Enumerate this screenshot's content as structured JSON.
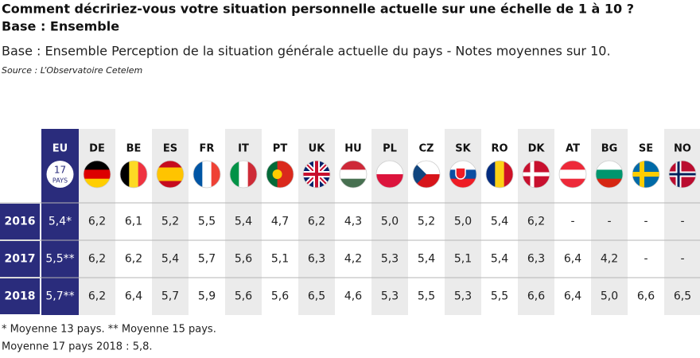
{
  "header": {
    "title_line1": "Comment décririez-vous votre situation personnelle actuelle sur une échelle de 1 à 10 ?",
    "title_line2": "Base : Ensemble",
    "subtitle": "Base : Ensemble Perception de la situation générale actuelle du pays - Notes moyennes sur 10.",
    "source": "Source : L’Observatoire Cetelem"
  },
  "table": {
    "columns": [
      "EU",
      "DE",
      "BE",
      "ES",
      "FR",
      "IT",
      "PT",
      "UK",
      "HU",
      "PL",
      "CZ",
      "SK",
      "RO",
      "DK",
      "AT",
      "BG",
      "SE",
      "NO"
    ],
    "eu_badge": {
      "number": "17",
      "label": "PAYS"
    },
    "rows": [
      {
        "year": "2016",
        "values": [
          "5,4*",
          "6,2",
          "6,1",
          "5,2",
          "5,5",
          "5,4",
          "4,7",
          "6,2",
          "4,3",
          "5,0",
          "5,2",
          "5,0",
          "5,4",
          "6,2",
          "-",
          "-",
          "-",
          "-"
        ]
      },
      {
        "year": "2017",
        "values": [
          "5,5**",
          "6,2",
          "6,2",
          "5,4",
          "5,7",
          "5,6",
          "5,1",
          "6,3",
          "4,2",
          "5,3",
          "5,4",
          "5,1",
          "5,4",
          "6,3",
          "6,4",
          "4,2",
          "-",
          "-"
        ]
      },
      {
        "year": "2018",
        "values": [
          "5,7**",
          "6,2",
          "6,4",
          "5,7",
          "5,9",
          "5,6",
          "5,6",
          "6,5",
          "4,6",
          "5,3",
          "5,5",
          "5,3",
          "5,5",
          "6,6",
          "6,4",
          "5,0",
          "6,6",
          "6,5"
        ]
      }
    ]
  },
  "footnotes": [
    "* Moyenne 13 pays. ** Moyenne 15 pays.",
    "Moyenne 17 pays 2018 : 5,8."
  ]
}
